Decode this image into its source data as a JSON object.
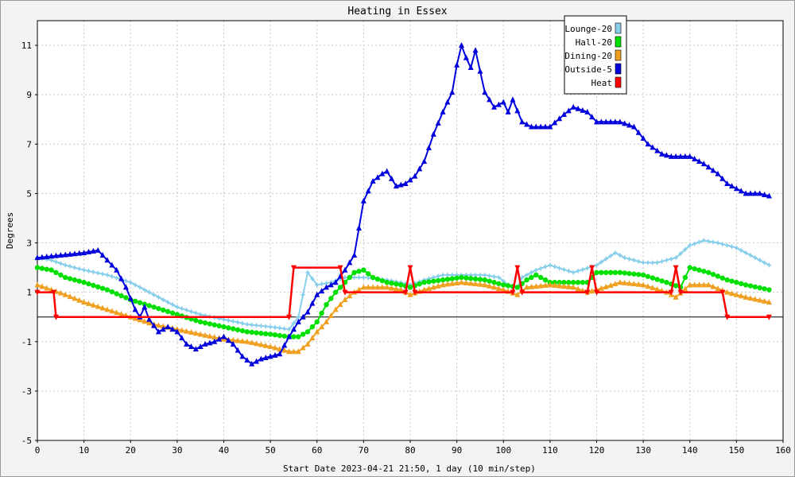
{
  "chart_data": {
    "type": "line",
    "title": "Heating in Essex",
    "xlabel": "Start Date 2023-04-21 21:50, 1 day (10 min/step)",
    "ylabel": "Degrees",
    "xlim": [
      0,
      160
    ],
    "ylim": [
      -5,
      12
    ],
    "xticks": [
      0,
      10,
      20,
      30,
      40,
      50,
      60,
      70,
      80,
      90,
      100,
      110,
      120,
      130,
      140,
      150,
      160
    ],
    "yticks": [
      -5,
      -3,
      -1,
      1,
      3,
      5,
      7,
      9,
      11
    ],
    "grid": true,
    "legend_position": "top-right",
    "series": [
      {
        "name": "Lounge-20",
        "color": "#87ceeb",
        "marker": "star",
        "points": [
          [
            0,
            2.4
          ],
          [
            3,
            2.3
          ],
          [
            6,
            2.1
          ],
          [
            10,
            1.9
          ],
          [
            15,
            1.7
          ],
          [
            20,
            1.4
          ],
          [
            25,
            0.9
          ],
          [
            30,
            0.4
          ],
          [
            35,
            0.1
          ],
          [
            40,
            -0.1
          ],
          [
            45,
            -0.3
          ],
          [
            50,
            -0.4
          ],
          [
            54,
            -0.5
          ],
          [
            56,
            0.0
          ],
          [
            58,
            1.8
          ],
          [
            60,
            1.3
          ],
          [
            63,
            1.4
          ],
          [
            66,
            1.6
          ],
          [
            70,
            1.6
          ],
          [
            75,
            1.5
          ],
          [
            78,
            1.4
          ],
          [
            80,
            1.3
          ],
          [
            83,
            1.5
          ],
          [
            87,
            1.7
          ],
          [
            91,
            1.7
          ],
          [
            96,
            1.7
          ],
          [
            99,
            1.6
          ],
          [
            101,
            1.3
          ],
          [
            103,
            1.2
          ],
          [
            104,
            1.6
          ],
          [
            107,
            1.9
          ],
          [
            110,
            2.1
          ],
          [
            115,
            1.8
          ],
          [
            120,
            2.1
          ],
          [
            124,
            2.6
          ],
          [
            126,
            2.4
          ],
          [
            130,
            2.2
          ],
          [
            133,
            2.2
          ],
          [
            137,
            2.4
          ],
          [
            140,
            2.9
          ],
          [
            143,
            3.1
          ],
          [
            146,
            3.0
          ],
          [
            150,
            2.8
          ],
          [
            153,
            2.5
          ],
          [
            157,
            2.1
          ]
        ]
      },
      {
        "name": "Hall-20",
        "color": "#00e000",
        "marker": "circle",
        "points": [
          [
            0,
            2.0
          ],
          [
            3,
            1.9
          ],
          [
            6,
            1.6
          ],
          [
            10,
            1.4
          ],
          [
            15,
            1.1
          ],
          [
            20,
            0.7
          ],
          [
            25,
            0.4
          ],
          [
            30,
            0.1
          ],
          [
            35,
            -0.2
          ],
          [
            40,
            -0.4
          ],
          [
            45,
            -0.6
          ],
          [
            50,
            -0.7
          ],
          [
            54,
            -0.8
          ],
          [
            56,
            -0.8
          ],
          [
            58,
            -0.6
          ],
          [
            60,
            -0.2
          ],
          [
            62,
            0.5
          ],
          [
            64,
            1.0
          ],
          [
            66,
            1.4
          ],
          [
            68,
            1.8
          ],
          [
            70,
            1.9
          ],
          [
            72,
            1.6
          ],
          [
            75,
            1.4
          ],
          [
            78,
            1.3
          ],
          [
            80,
            1.2
          ],
          [
            83,
            1.4
          ],
          [
            87,
            1.5
          ],
          [
            91,
            1.6
          ],
          [
            96,
            1.5
          ],
          [
            100,
            1.3
          ],
          [
            103,
            1.2
          ],
          [
            105,
            1.5
          ],
          [
            107,
            1.7
          ],
          [
            110,
            1.4
          ],
          [
            114,
            1.4
          ],
          [
            118,
            1.4
          ],
          [
            120,
            1.8
          ],
          [
            125,
            1.8
          ],
          [
            130,
            1.7
          ],
          [
            135,
            1.4
          ],
          [
            138,
            1.2
          ],
          [
            140,
            2.0
          ],
          [
            144,
            1.8
          ],
          [
            148,
            1.5
          ],
          [
            152,
            1.3
          ],
          [
            157,
            1.1
          ]
        ]
      },
      {
        "name": "Dining-20",
        "color": "#f0a020",
        "marker": "triangle",
        "points": [
          [
            0,
            1.3
          ],
          [
            3,
            1.1
          ],
          [
            6,
            0.9
          ],
          [
            10,
            0.6
          ],
          [
            15,
            0.3
          ],
          [
            20,
            0.0
          ],
          [
            25,
            -0.3
          ],
          [
            30,
            -0.5
          ],
          [
            35,
            -0.7
          ],
          [
            40,
            -0.9
          ],
          [
            45,
            -1.0
          ],
          [
            50,
            -1.2
          ],
          [
            54,
            -1.4
          ],
          [
            56,
            -1.4
          ],
          [
            58,
            -1.1
          ],
          [
            60,
            -0.6
          ],
          [
            62,
            -0.2
          ],
          [
            64,
            0.3
          ],
          [
            66,
            0.7
          ],
          [
            68,
            1.0
          ],
          [
            70,
            1.2
          ],
          [
            75,
            1.2
          ],
          [
            78,
            1.1
          ],
          [
            80,
            0.9
          ],
          [
            83,
            1.1
          ],
          [
            87,
            1.3
          ],
          [
            91,
            1.4
          ],
          [
            96,
            1.3
          ],
          [
            100,
            1.1
          ],
          [
            103,
            0.9
          ],
          [
            105,
            1.2
          ],
          [
            110,
            1.3
          ],
          [
            115,
            1.2
          ],
          [
            118,
            1.0
          ],
          [
            120,
            1.1
          ],
          [
            125,
            1.4
          ],
          [
            130,
            1.3
          ],
          [
            135,
            1.0
          ],
          [
            137,
            0.8
          ],
          [
            140,
            1.3
          ],
          [
            144,
            1.3
          ],
          [
            148,
            1.0
          ],
          [
            152,
            0.8
          ],
          [
            157,
            0.6
          ]
        ]
      },
      {
        "name": "Outside-5",
        "color": "#0000dd",
        "marker": "triangle",
        "points": [
          [
            0,
            2.4
          ],
          [
            5,
            2.5
          ],
          [
            10,
            2.6
          ],
          [
            13,
            2.7
          ],
          [
            15,
            2.3
          ],
          [
            17,
            1.9
          ],
          [
            19,
            1.2
          ],
          [
            21,
            0.3
          ],
          [
            22,
            0.0
          ],
          [
            23,
            0.4
          ],
          [
            24,
            -0.1
          ],
          [
            26,
            -0.6
          ],
          [
            28,
            -0.4
          ],
          [
            30,
            -0.6
          ],
          [
            32,
            -1.1
          ],
          [
            34,
            -1.3
          ],
          [
            36,
            -1.1
          ],
          [
            38,
            -1.0
          ],
          [
            40,
            -0.8
          ],
          [
            42,
            -1.1
          ],
          [
            44,
            -1.6
          ],
          [
            46,
            -1.9
          ],
          [
            48,
            -1.7
          ],
          [
            50,
            -1.6
          ],
          [
            52,
            -1.5
          ],
          [
            54,
            -0.8
          ],
          [
            56,
            -0.2
          ],
          [
            58,
            0.2
          ],
          [
            60,
            0.9
          ],
          [
            62,
            1.2
          ],
          [
            64,
            1.4
          ],
          [
            66,
            1.9
          ],
          [
            68,
            2.5
          ],
          [
            70,
            4.7
          ],
          [
            72,
            5.5
          ],
          [
            74,
            5.8
          ],
          [
            75,
            5.9
          ],
          [
            77,
            5.3
          ],
          [
            79,
            5.4
          ],
          [
            81,
            5.7
          ],
          [
            83,
            6.3
          ],
          [
            85,
            7.4
          ],
          [
            87,
            8.3
          ],
          [
            89,
            9.1
          ],
          [
            90,
            10.2
          ],
          [
            91,
            11.0
          ],
          [
            92,
            10.5
          ],
          [
            93,
            10.1
          ],
          [
            94,
            10.8
          ],
          [
            96,
            9.1
          ],
          [
            98,
            8.5
          ],
          [
            100,
            8.7
          ],
          [
            101,
            8.3
          ],
          [
            102,
            8.8
          ],
          [
            104,
            7.9
          ],
          [
            106,
            7.7
          ],
          [
            110,
            7.7
          ],
          [
            113,
            8.2
          ],
          [
            115,
            8.5
          ],
          [
            118,
            8.3
          ],
          [
            120,
            7.9
          ],
          [
            125,
            7.9
          ],
          [
            128,
            7.7
          ],
          [
            131,
            7.0
          ],
          [
            134,
            6.6
          ],
          [
            136,
            6.5
          ],
          [
            140,
            6.5
          ],
          [
            143,
            6.2
          ],
          [
            146,
            5.8
          ],
          [
            148,
            5.4
          ],
          [
            150,
            5.2
          ],
          [
            152,
            5.0
          ],
          [
            155,
            5.0
          ],
          [
            157,
            4.9
          ]
        ]
      },
      {
        "name": "Heat",
        "color": "#ff0000",
        "marker": "triangle-down",
        "points": [
          [
            0,
            1.0
          ],
          [
            3.5,
            1.0
          ],
          [
            4,
            0.0
          ],
          [
            54,
            0.0
          ],
          [
            55,
            2.0
          ],
          [
            65,
            2.0
          ],
          [
            66,
            1.0
          ],
          [
            79,
            1.0
          ],
          [
            80,
            2.0
          ],
          [
            81,
            1.0
          ],
          [
            102,
            1.0
          ],
          [
            103,
            2.0
          ],
          [
            104,
            1.0
          ],
          [
            118,
            1.0
          ],
          [
            119,
            2.0
          ],
          [
            120,
            1.0
          ],
          [
            136,
            1.0
          ],
          [
            137,
            2.0
          ],
          [
            138,
            1.0
          ],
          [
            147,
            1.0
          ],
          [
            148,
            0.0
          ],
          [
            157,
            0.0
          ]
        ]
      }
    ]
  }
}
